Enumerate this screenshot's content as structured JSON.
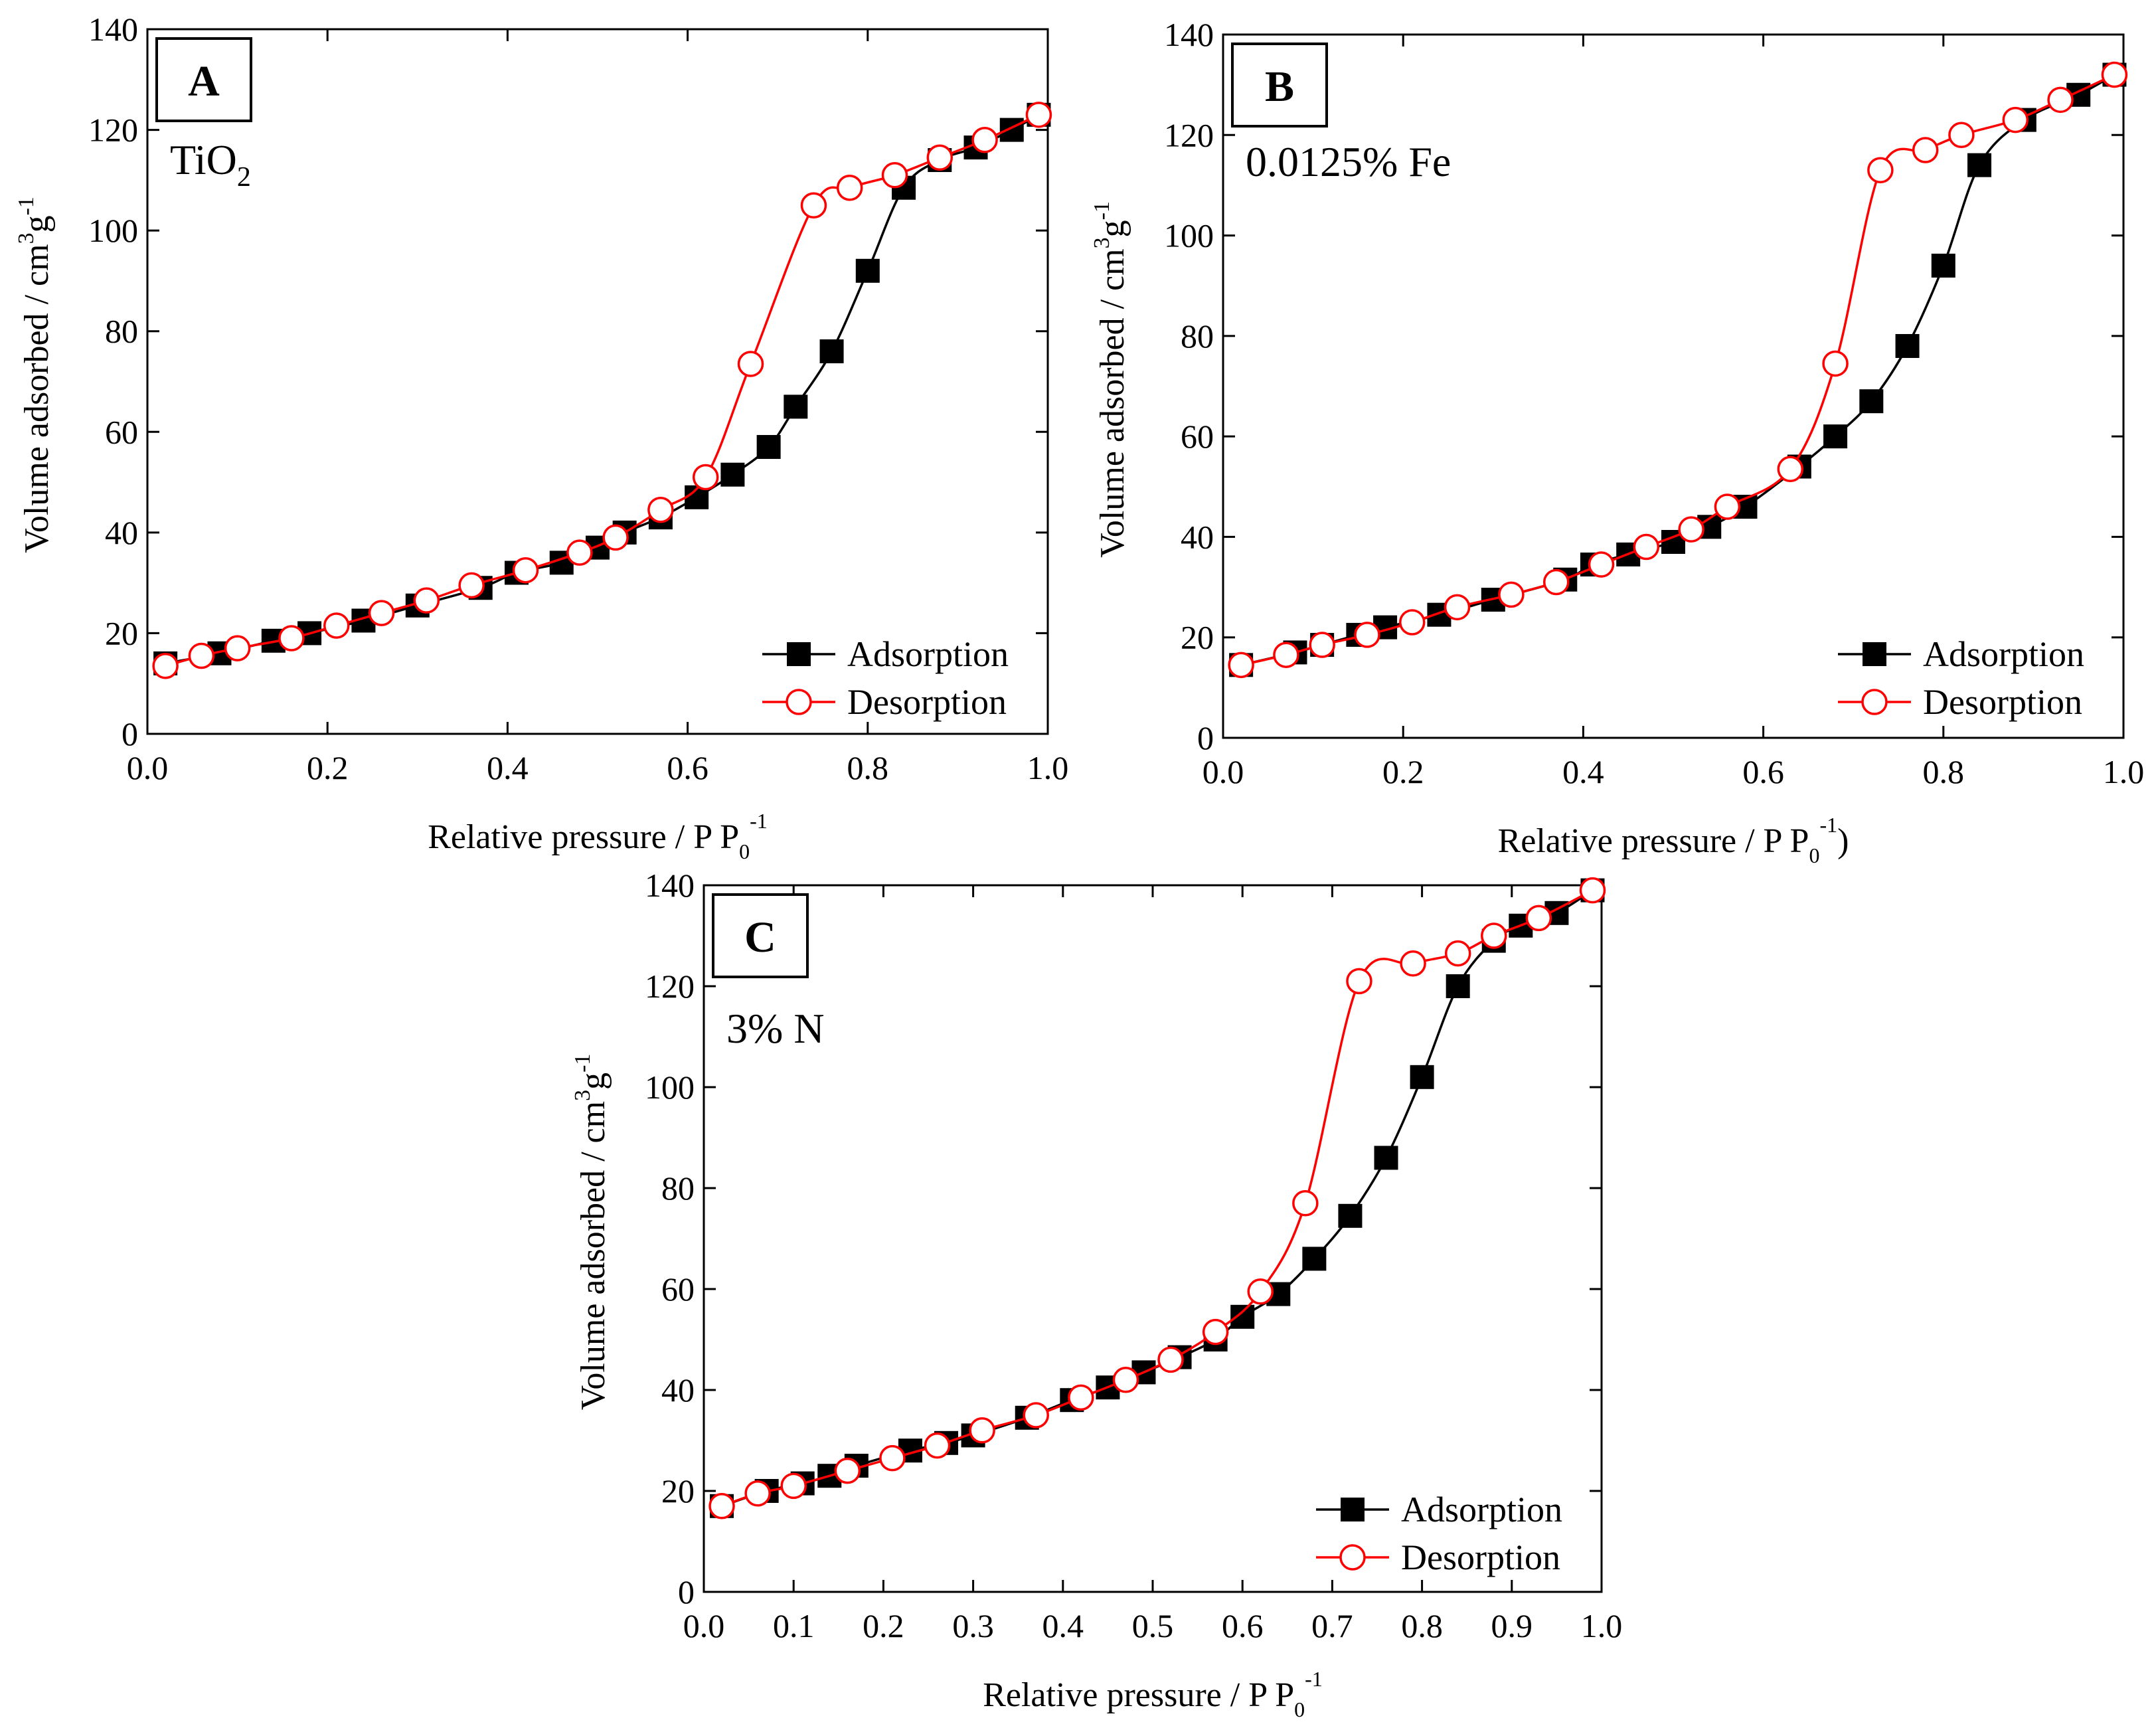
{
  "figure": {
    "colors": {
      "adsorption": "#000000",
      "desorption": "#ff0000",
      "axis": "#000000",
      "background": "#ffffff"
    }
  },
  "chart_data": [
    {
      "panel": "A",
      "type": "scatter",
      "annotation": "TiO",
      "annotation_subscript": "2",
      "xlabel": "Relative pressure / P P",
      "xlabel_sub": "0",
      "xlabel_sup": "-1",
      "xlabel_suffix": "",
      "ylabel": "Volume adsorbed / cm",
      "ylabel_sup1": "3",
      "ylabel_mid": "g",
      "ylabel_sup2": "-1",
      "xlim": [
        0,
        1.0
      ],
      "ylim": [
        0,
        140
      ],
      "xticks": [
        0,
        0.2,
        0.4,
        0.6,
        0.8,
        1.0
      ],
      "xtick_labels": [
        "0.0",
        "0.2",
        "0.4",
        "0.6",
        "0.8",
        "1.0"
      ],
      "yticks": [
        0,
        20,
        40,
        60,
        80,
        100,
        120,
        140
      ],
      "ytick_labels": [
        "0",
        "20",
        "40",
        "60",
        "80",
        "100",
        "120",
        "140"
      ],
      "legend": [
        "Adsorption",
        "Desorption"
      ],
      "legend_position": "bottom-right",
      "series": [
        {
          "name": "Adsorption",
          "marker": "filled-square",
          "color": "#000000",
          "x": [
            0.02,
            0.08,
            0.14,
            0.18,
            0.24,
            0.3,
            0.37,
            0.41,
            0.46,
            0.5,
            0.53,
            0.57,
            0.61,
            0.65,
            0.69,
            0.72,
            0.76,
            0.8,
            0.84,
            0.88,
            0.92,
            0.96,
            0.99
          ],
          "y": [
            14,
            16,
            18.5,
            20,
            22.5,
            25.5,
            29,
            32,
            34,
            37,
            40,
            43,
            47,
            51.5,
            57,
            65,
            76,
            92,
            108.5,
            114,
            116.5,
            120,
            123
          ]
        },
        {
          "name": "Desorption",
          "marker": "open-circle",
          "color": "#ff0000",
          "x": [
            0.02,
            0.06,
            0.1,
            0.16,
            0.21,
            0.26,
            0.31,
            0.36,
            0.42,
            0.48,
            0.52,
            0.57,
            0.62,
            0.67,
            0.74,
            0.78,
            0.83,
            0.88,
            0.93,
            0.99
          ],
          "y": [
            13.5,
            15.5,
            17,
            19,
            21.5,
            24,
            26.5,
            29.5,
            32.5,
            36,
            39,
            44.5,
            51,
            73.5,
            105,
            108.5,
            111,
            114.5,
            118,
            123
          ]
        }
      ]
    },
    {
      "panel": "B",
      "type": "scatter",
      "annotation": "0.0125% Fe",
      "annotation_subscript": "",
      "xlabel": "Relative pressure / P P",
      "xlabel_sub": "0",
      "xlabel_sup": "-1",
      "xlabel_suffix": ")",
      "ylabel": "Volume adsorbed / cm",
      "ylabel_sup1": "3",
      "ylabel_mid": "g",
      "ylabel_sup2": "-1",
      "xlim": [
        0,
        1.0
      ],
      "ylim": [
        0,
        140
      ],
      "xticks": [
        0,
        0.2,
        0.4,
        0.6,
        0.8,
        1.0
      ],
      "xtick_labels": [
        "0.0",
        "0.2",
        "0.4",
        "0.6",
        "0.8",
        "1.0"
      ],
      "yticks": [
        0,
        20,
        40,
        60,
        80,
        100,
        120,
        140
      ],
      "ytick_labels": [
        "0",
        "20",
        "40",
        "60",
        "80",
        "100",
        "120",
        "140"
      ],
      "legend": [
        "Adsorption",
        "Desorption"
      ],
      "legend_position": "bottom-right",
      "series": [
        {
          "name": "Adsorption",
          "marker": "filled-square",
          "color": "#000000",
          "x": [
            0.02,
            0.08,
            0.11,
            0.15,
            0.18,
            0.24,
            0.3,
            0.38,
            0.41,
            0.45,
            0.5,
            0.54,
            0.58,
            0.64,
            0.68,
            0.72,
            0.76,
            0.8,
            0.84,
            0.89,
            0.95,
            0.99
          ],
          "y": [
            14.5,
            17,
            18.5,
            20.5,
            22,
            24.5,
            27.5,
            31.5,
            34.5,
            36.5,
            39,
            42,
            46,
            54,
            60,
            67,
            78,
            94,
            114,
            123,
            128,
            132
          ]
        },
        {
          "name": "Desorption",
          "marker": "open-circle",
          "color": "#ff0000",
          "x": [
            0.02,
            0.07,
            0.11,
            0.16,
            0.21,
            0.26,
            0.32,
            0.37,
            0.42,
            0.47,
            0.52,
            0.56,
            0.63,
            0.68,
            0.73,
            0.78,
            0.82,
            0.88,
            0.93,
            0.99
          ],
          "y": [
            14.5,
            16.5,
            18.5,
            20.5,
            23,
            26,
            28.5,
            31,
            34.5,
            38,
            41.5,
            46,
            53.5,
            74.5,
            113,
            117,
            120,
            123,
            127,
            132
          ]
        }
      ]
    },
    {
      "panel": "C",
      "type": "scatter",
      "annotation": "3% N",
      "annotation_subscript": "",
      "xlabel": "Relative pressure / P P",
      "xlabel_sub": "0",
      "xlabel_sup": "-1",
      "xlabel_suffix": "",
      "ylabel": "Volume adsorbed / cm",
      "ylabel_sup1": "3",
      "ylabel_mid": "g",
      "ylabel_sup2": "-1",
      "xlim": [
        0,
        1.0
      ],
      "ylim": [
        0,
        140
      ],
      "xticks": [
        0,
        0.1,
        0.2,
        0.3,
        0.4,
        0.5,
        0.6,
        0.7,
        0.8,
        0.9,
        1.0
      ],
      "xtick_labels": [
        "0.0",
        "0.1",
        "0.2",
        "0.3",
        "0.4",
        "0.5",
        "0.6",
        "0.7",
        "0.8",
        "0.9",
        "1.0"
      ],
      "yticks": [
        0,
        20,
        40,
        60,
        80,
        100,
        120,
        140
      ],
      "ytick_labels": [
        "0",
        "20",
        "40",
        "60",
        "80",
        "100",
        "120",
        "140"
      ],
      "legend": [
        "Adsorption",
        "Desorption"
      ],
      "legend_position": "bottom-right",
      "series": [
        {
          "name": "Adsorption",
          "marker": "filled-square",
          "color": "#000000",
          "x": [
            0.02,
            0.07,
            0.11,
            0.14,
            0.17,
            0.23,
            0.27,
            0.3,
            0.36,
            0.41,
            0.45,
            0.49,
            0.53,
            0.57,
            0.6,
            0.64,
            0.68,
            0.72,
            0.76,
            0.8,
            0.84,
            0.88,
            0.91,
            0.95,
            0.99
          ],
          "y": [
            17,
            20,
            21.5,
            23,
            25,
            28,
            29.5,
            31,
            34.5,
            38,
            40.5,
            43.5,
            46.5,
            50,
            54.5,
            59,
            66,
            74.5,
            86,
            102,
            120,
            129,
            132,
            134.5,
            139
          ]
        },
        {
          "name": "Desorption",
          "marker": "open-circle",
          "color": "#ff0000",
          "x": [
            0.02,
            0.06,
            0.1,
            0.16,
            0.21,
            0.26,
            0.31,
            0.37,
            0.42,
            0.47,
            0.52,
            0.57,
            0.62,
            0.67,
            0.73,
            0.79,
            0.84,
            0.88,
            0.93,
            0.99
          ],
          "y": [
            17,
            19.5,
            21,
            24,
            26.5,
            29,
            32,
            35,
            38.5,
            42,
            46,
            51.5,
            59.5,
            77,
            121,
            124.5,
            126.5,
            130,
            133.5,
            139
          ]
        }
      ]
    }
  ]
}
